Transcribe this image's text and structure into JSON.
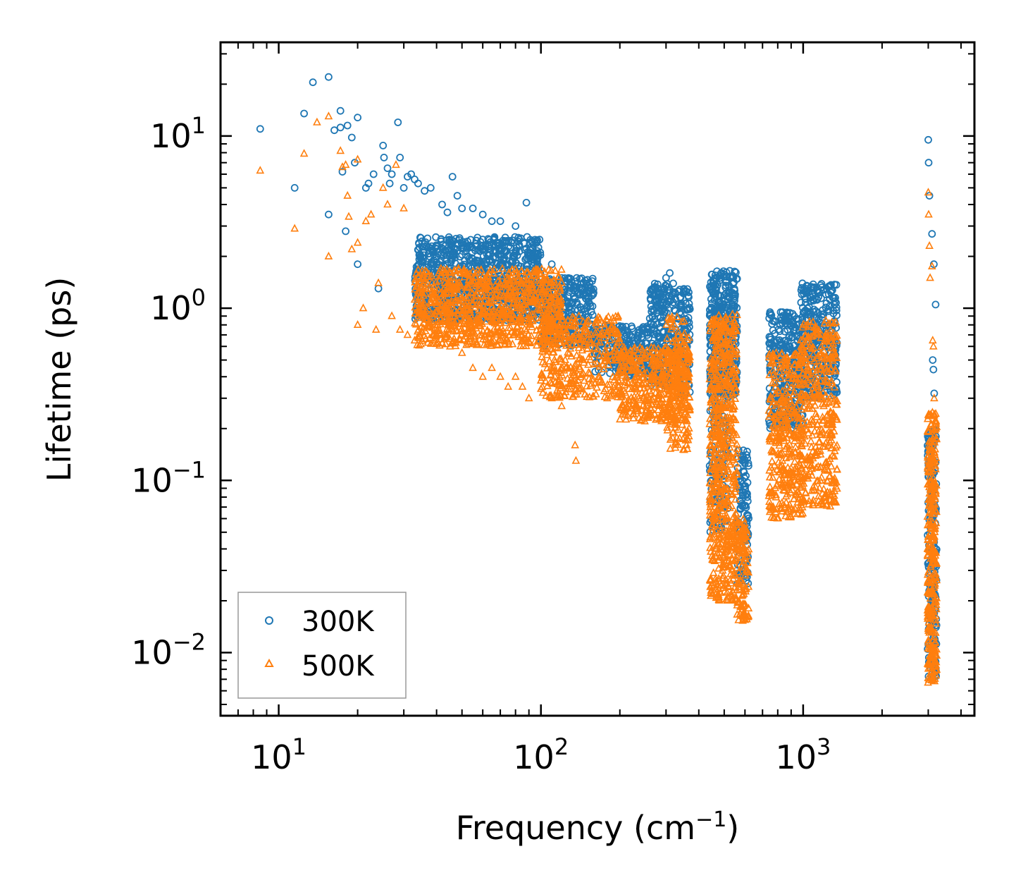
{
  "chart_data": {
    "type": "scatter",
    "xscale": "log",
    "yscale": "log",
    "xlim": [
      6.0,
      4500
    ],
    "ylim": [
      0.0043,
      35
    ],
    "xlabel": {
      "base": "Frequency (cm",
      "sup": "−1",
      "tail": ")"
    },
    "ylabel": "Lifetime (ps)",
    "x_ticks": [
      {
        "base": "10",
        "exp": "1",
        "value": 10
      },
      {
        "base": "10",
        "exp": "2",
        "value": 100
      },
      {
        "base": "10",
        "exp": "3",
        "value": 1000
      }
    ],
    "y_ticks": [
      {
        "base": "10",
        "exp": "1",
        "value": 10
      },
      {
        "base": "10",
        "exp": "0",
        "value": 1
      },
      {
        "base": "10",
        "exp": "−1",
        "value": 0.1
      },
      {
        "base": "10",
        "exp": "−2",
        "value": 0.01
      }
    ],
    "legend": {
      "position": "lower-left"
    },
    "series": [
      {
        "name": "300K",
        "marker": "circle-open",
        "color": "#1f77b4",
        "points": [
          [
            8.5,
            11.0
          ],
          [
            11.5,
            5.0
          ],
          [
            12.5,
            13.5
          ],
          [
            13.5,
            20.5
          ],
          [
            15.5,
            22.0
          ],
          [
            15.5,
            3.5
          ],
          [
            16.3,
            10.8
          ],
          [
            17.2,
            14.0
          ],
          [
            17.2,
            11.2
          ],
          [
            17.5,
            6.2
          ],
          [
            18.0,
            2.8
          ],
          [
            18.3,
            11.5
          ],
          [
            19.0,
            9.8
          ],
          [
            19.5,
            7.0
          ],
          [
            20.0,
            12.8
          ],
          [
            20.0,
            1.8
          ],
          [
            21.5,
            5.0
          ],
          [
            22.0,
            5.3
          ],
          [
            23.0,
            6.0
          ],
          [
            24.0,
            1.3
          ],
          [
            25.0,
            8.8
          ],
          [
            25.2,
            7.5
          ],
          [
            26.0,
            6.5
          ],
          [
            26.5,
            5.3
          ],
          [
            27.0,
            6.0
          ],
          [
            28.5,
            12.0
          ],
          [
            29.0,
            7.5
          ],
          [
            30.0,
            5.0
          ],
          [
            31.0,
            5.8
          ],
          [
            32.0,
            6.0
          ],
          [
            33.0,
            5.6
          ],
          [
            34.0,
            5.3
          ],
          [
            36.0,
            4.8
          ],
          [
            38.0,
            5.0
          ],
          [
            42.0,
            4.0
          ],
          [
            44.0,
            3.6
          ],
          [
            46.0,
            5.8
          ],
          [
            48.0,
            4.5
          ],
          [
            50.0,
            3.8
          ],
          [
            55.0,
            3.8
          ],
          [
            60.0,
            3.5
          ],
          [
            65.0,
            3.2
          ],
          [
            70.0,
            3.2
          ],
          [
            80.0,
            3.0
          ],
          [
            88.0,
            4.1
          ],
          [
            95.0,
            2.5
          ],
          [
            110.0,
            1.8
          ],
          [
            120.0,
            1.5
          ],
          [
            135.0,
            1.3
          ],
          [
            150.0,
            1.0
          ],
          [
            200.0,
            0.75
          ],
          [
            300.0,
            1.5
          ],
          [
            310.0,
            1.6
          ],
          [
            3000.0,
            9.5
          ],
          [
            3010.0,
            7.0
          ],
          [
            3030.0,
            4.5
          ],
          [
            3100.0,
            2.7
          ],
          [
            3150.0,
            1.8
          ],
          [
            3200.0,
            1.05
          ],
          [
            3120.0,
            0.5
          ],
          [
            3140.0,
            0.44
          ],
          [
            3160.0,
            0.32
          ]
        ],
        "bands": [
          {
            "x": [
              33,
              100
            ],
            "y": [
              0.85,
              2.6
            ],
            "n": 900
          },
          {
            "x": [
              100,
              160
            ],
            "y": [
              0.6,
              1.5
            ],
            "n": 300
          },
          {
            "x": [
              160,
              260
            ],
            "y": [
              0.4,
              0.8
            ],
            "n": 220
          },
          {
            "x": [
              260,
              330
            ],
            "y": [
              0.35,
              1.4
            ],
            "n": 220
          },
          {
            "x": [
              330,
              370
            ],
            "y": [
              0.3,
              1.3
            ],
            "n": 110
          },
          {
            "x": [
              440,
              560
            ],
            "y": [
              0.3,
              1.65
            ],
            "n": 400
          },
          {
            "x": [
              440,
              520
            ],
            "y": [
              0.05,
              0.3
            ],
            "n": 120
          },
          {
            "x": [
              560,
              620
            ],
            "y": [
              0.025,
              0.15
            ],
            "n": 120
          },
          {
            "x": [
              740,
              1000
            ],
            "y": [
              0.2,
              0.95
            ],
            "n": 300
          },
          {
            "x": [
              980,
              1350
            ],
            "y": [
              0.3,
              1.4
            ],
            "n": 320
          },
          {
            "x": [
              2980,
              3230
            ],
            "y": [
              0.007,
              0.2
            ],
            "n": 200
          }
        ]
      },
      {
        "name": "500K",
        "marker": "triangle-open",
        "color": "#ff7f0e",
        "points": [
          [
            8.5,
            6.3
          ],
          [
            11.5,
            2.9
          ],
          [
            12.5,
            7.9
          ],
          [
            14.0,
            12.0
          ],
          [
            15.5,
            13.0
          ],
          [
            15.5,
            2.0
          ],
          [
            17.2,
            8.2
          ],
          [
            17.5,
            6.6
          ],
          [
            18.0,
            6.8
          ],
          [
            18.3,
            4.5
          ],
          [
            18.5,
            3.4
          ],
          [
            19.0,
            2.2
          ],
          [
            20.0,
            7.3
          ],
          [
            20.0,
            2.4
          ],
          [
            20.0,
            0.8
          ],
          [
            21.0,
            1.0
          ],
          [
            21.5,
            3.2
          ],
          [
            22.5,
            3.5
          ],
          [
            23.5,
            0.75
          ],
          [
            24.0,
            1.4
          ],
          [
            25.0,
            5.0
          ],
          [
            26.0,
            4.0
          ],
          [
            27.0,
            0.9
          ],
          [
            28.0,
            6.8
          ],
          [
            29.0,
            0.75
          ],
          [
            30.0,
            3.8
          ],
          [
            31.0,
            0.7
          ],
          [
            33.0,
            0.65
          ],
          [
            35.0,
            0.78
          ],
          [
            40.0,
            0.62
          ],
          [
            45.0,
            0.6
          ],
          [
            50.0,
            0.55
          ],
          [
            55.0,
            0.45
          ],
          [
            60.0,
            0.4
          ],
          [
            65.0,
            0.45
          ],
          [
            70.0,
            0.4
          ],
          [
            75.0,
            0.35
          ],
          [
            80.0,
            0.4
          ],
          [
            85.0,
            0.35
          ],
          [
            90.0,
            0.3
          ],
          [
            100.0,
            0.38
          ],
          [
            110.0,
            0.3
          ],
          [
            120.0,
            0.27
          ],
          [
            135.0,
            0.16
          ],
          [
            136.0,
            0.13
          ],
          [
            3000.0,
            4.7
          ],
          [
            3010.0,
            3.5
          ],
          [
            3030.0,
            2.3
          ],
          [
            3050.0,
            1.5
          ],
          [
            3100.0,
            1.75
          ],
          [
            3120.0,
            0.65
          ],
          [
            3140.0,
            0.6
          ],
          [
            3160.0,
            0.3
          ]
        ],
        "bands": [
          {
            "x": [
              33,
              120
            ],
            "y": [
              0.6,
              1.7
            ],
            "n": 900
          },
          {
            "x": [
              100,
              200
            ],
            "y": [
              0.3,
              0.9
            ],
            "n": 360
          },
          {
            "x": [
              200,
              370
            ],
            "y": [
              0.22,
              0.6
            ],
            "n": 420
          },
          {
            "x": [
              300,
              370
            ],
            "y": [
              0.15,
              0.9
            ],
            "n": 180
          },
          {
            "x": [
              440,
              560
            ],
            "y": [
              0.02,
              0.95
            ],
            "n": 650
          },
          {
            "x": [
              560,
              620
            ],
            "y": [
              0.015,
              0.06
            ],
            "n": 110
          },
          {
            "x": [
              740,
              1000
            ],
            "y": [
              0.06,
              0.55
            ],
            "n": 380
          },
          {
            "x": [
              980,
              1350
            ],
            "y": [
              0.07,
              0.85
            ],
            "n": 380
          },
          {
            "x": [
              2980,
              3230
            ],
            "y": [
              0.0065,
              0.25
            ],
            "n": 320
          }
        ]
      }
    ]
  }
}
